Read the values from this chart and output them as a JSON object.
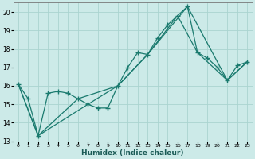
{
  "xlabel": "Humidex (Indice chaleur)",
  "background_color": "#cceae8",
  "grid_color": "#aad4d0",
  "line_color": "#1a7a6e",
  "xlim": [
    -0.5,
    23.5
  ],
  "ylim": [
    13,
    20.5
  ],
  "yticks": [
    13,
    14,
    15,
    16,
    17,
    18,
    19,
    20
  ],
  "xticks": [
    0,
    1,
    2,
    3,
    4,
    5,
    6,
    7,
    8,
    9,
    10,
    11,
    12,
    13,
    14,
    15,
    16,
    17,
    18,
    19,
    20,
    21,
    22,
    23
  ],
  "series1_x": [
    0,
    1,
    2,
    3,
    4,
    5,
    6,
    7,
    8,
    9,
    10,
    11,
    12,
    13,
    14,
    15,
    16,
    17,
    18,
    19,
    20,
    21,
    22,
    23
  ],
  "series1_y": [
    16.1,
    15.3,
    13.3,
    15.6,
    15.7,
    15.6,
    15.3,
    15.0,
    14.8,
    14.8,
    16.0,
    17.0,
    17.8,
    17.7,
    18.6,
    19.3,
    19.8,
    20.3,
    17.8,
    17.5,
    17.0,
    16.3,
    17.1,
    17.3
  ],
  "series2_x": [
    0,
    2,
    6,
    10,
    13,
    16,
    18,
    21,
    23
  ],
  "series2_y": [
    16.1,
    13.3,
    15.3,
    16.0,
    17.7,
    19.8,
    17.8,
    16.3,
    17.3
  ],
  "series3_x": [
    0,
    2,
    7,
    10,
    13,
    17,
    21,
    23
  ],
  "series3_y": [
    16.1,
    13.3,
    15.0,
    16.0,
    17.7,
    20.3,
    16.3,
    17.3
  ]
}
